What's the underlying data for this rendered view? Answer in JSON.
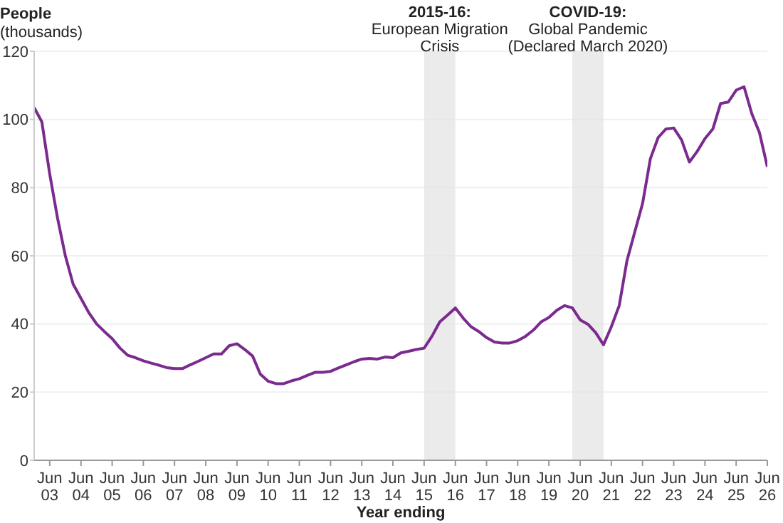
{
  "chart_data": {
    "type": "line",
    "xlabel": "Year ending",
    "ylabel": "People\n(thousands)",
    "x": [
      "2002-12",
      "2003-03",
      "2003-06",
      "2003-09",
      "2003-12",
      "2004-03",
      "2004-06",
      "2004-09",
      "2004-12",
      "2005-03",
      "2005-06",
      "2005-09",
      "2005-12",
      "2006-03",
      "2006-06",
      "2006-09",
      "2006-12",
      "2007-03",
      "2007-06",
      "2007-09",
      "2007-12",
      "2008-03",
      "2008-06",
      "2008-09",
      "2008-12",
      "2009-03",
      "2009-06",
      "2009-09",
      "2009-12",
      "2010-03",
      "2010-06",
      "2010-09",
      "2010-12",
      "2011-03",
      "2011-06",
      "2011-09",
      "2011-12",
      "2012-03",
      "2012-06",
      "2012-09",
      "2012-12",
      "2013-03",
      "2013-06",
      "2013-09",
      "2013-12",
      "2014-03",
      "2014-06",
      "2014-09",
      "2014-12",
      "2015-03",
      "2015-06",
      "2015-09",
      "2015-12",
      "2016-03",
      "2016-06",
      "2016-09",
      "2016-12",
      "2017-03",
      "2017-06",
      "2017-09",
      "2017-12",
      "2018-03",
      "2018-06",
      "2018-09",
      "2018-12",
      "2019-03",
      "2019-06",
      "2019-09",
      "2019-12",
      "2020-03",
      "2020-06",
      "2020-09",
      "2020-12",
      "2021-03",
      "2021-06",
      "2021-09",
      "2021-12",
      "2022-03",
      "2022-06",
      "2022-09",
      "2022-12",
      "2023-03",
      "2023-06",
      "2023-09",
      "2023-12",
      "2024-03",
      "2024-06",
      "2024-09",
      "2024-12",
      "2025-03",
      "2025-06",
      "2025-09",
      "2025-12",
      "2026-03",
      "2026-06"
    ],
    "series": [
      {
        "color": "#7b2a8e",
        "values": [
          103.5,
          99.3,
          84,
          71,
          60,
          51.7,
          47.5,
          43.3,
          40,
          37.8,
          35.7,
          32.9,
          30.8,
          30.1,
          29.2,
          28.5,
          27.9,
          27.2,
          26.9,
          26.9,
          28,
          29,
          30.1,
          31.2,
          31.2,
          33.6,
          34.2,
          32.5,
          30.6,
          25.3,
          23.2,
          22.5,
          22.5,
          23.3,
          23.9,
          24.9,
          25.8,
          25.8,
          26.1,
          27.1,
          28,
          28.9,
          29.7,
          29.9,
          29.7,
          30.3,
          30.1,
          31.5,
          32,
          32.5,
          32.9,
          36.4,
          40.6,
          42.6,
          44.7,
          41.7,
          39.2,
          37.8,
          36,
          34.7,
          34.4,
          34.4,
          35.1,
          36.4,
          38.2,
          40.6,
          41.9,
          44,
          45.4,
          44.7,
          41.2,
          39.9,
          37.4,
          33.9,
          39.2,
          45.4,
          58.6,
          66.9,
          75.3,
          88.5,
          94.7,
          97.2,
          97.5,
          94,
          87.5,
          90.6,
          94.4,
          97.2,
          104.7,
          105.1,
          108.6,
          109.6,
          101.7,
          96.1,
          86.1
        ]
      }
    ],
    "xlim": [
      "2002-12",
      "2026-06"
    ],
    "xticks": [
      {
        "value": "2003-06",
        "label": "Jun 03"
      },
      {
        "value": "2004-06",
        "label": "Jun 04"
      },
      {
        "value": "2005-06",
        "label": "Jun 05"
      },
      {
        "value": "2006-06",
        "label": "Jun 06"
      },
      {
        "value": "2007-06",
        "label": "Jun 07"
      },
      {
        "value": "2008-06",
        "label": "Jun 08"
      },
      {
        "value": "2009-06",
        "label": "Jun 09"
      },
      {
        "value": "2010-06",
        "label": "Jun 10"
      },
      {
        "value": "2011-06",
        "label": "Jun 11"
      },
      {
        "value": "2012-06",
        "label": "Jun 12"
      },
      {
        "value": "2013-06",
        "label": "Jun 13"
      },
      {
        "value": "2014-06",
        "label": "Jun 14"
      },
      {
        "value": "2015-06",
        "label": "Jun 15"
      },
      {
        "value": "2016-06",
        "label": "Jun 16"
      },
      {
        "value": "2017-06",
        "label": "Jun 17"
      },
      {
        "value": "2018-06",
        "label": "Jun 18"
      },
      {
        "value": "2019-06",
        "label": "Jun 19"
      },
      {
        "value": "2020-06",
        "label": "Jun 20"
      },
      {
        "value": "2021-06",
        "label": "Jun 21"
      },
      {
        "value": "2022-06",
        "label": "Jun 22"
      },
      {
        "value": "2023-06",
        "label": "Jun 23"
      },
      {
        "value": "2024-06",
        "label": "Jun 24"
      },
      {
        "value": "2025-06",
        "label": "Jun 25"
      },
      {
        "value": "2026-06",
        "label": "Jun 26"
      }
    ],
    "ylim": [
      0,
      120
    ],
    "yticks": [
      0,
      20,
      40,
      60,
      80,
      100,
      120
    ],
    "grid": "y",
    "bands": [
      {
        "axis": "x",
        "from": "2015-06",
        "to": "2016-06",
        "label": "2015-16:\nEuropean Migration\nCrisis",
        "color": "#e3e3e3"
      },
      {
        "axis": "x",
        "from": "2020-03",
        "to": "2021-03",
        "label": "COVID-19:\nGlobal Pandemic\n(Declared March 2020)",
        "color": "#e3e3e3"
      }
    ]
  }
}
